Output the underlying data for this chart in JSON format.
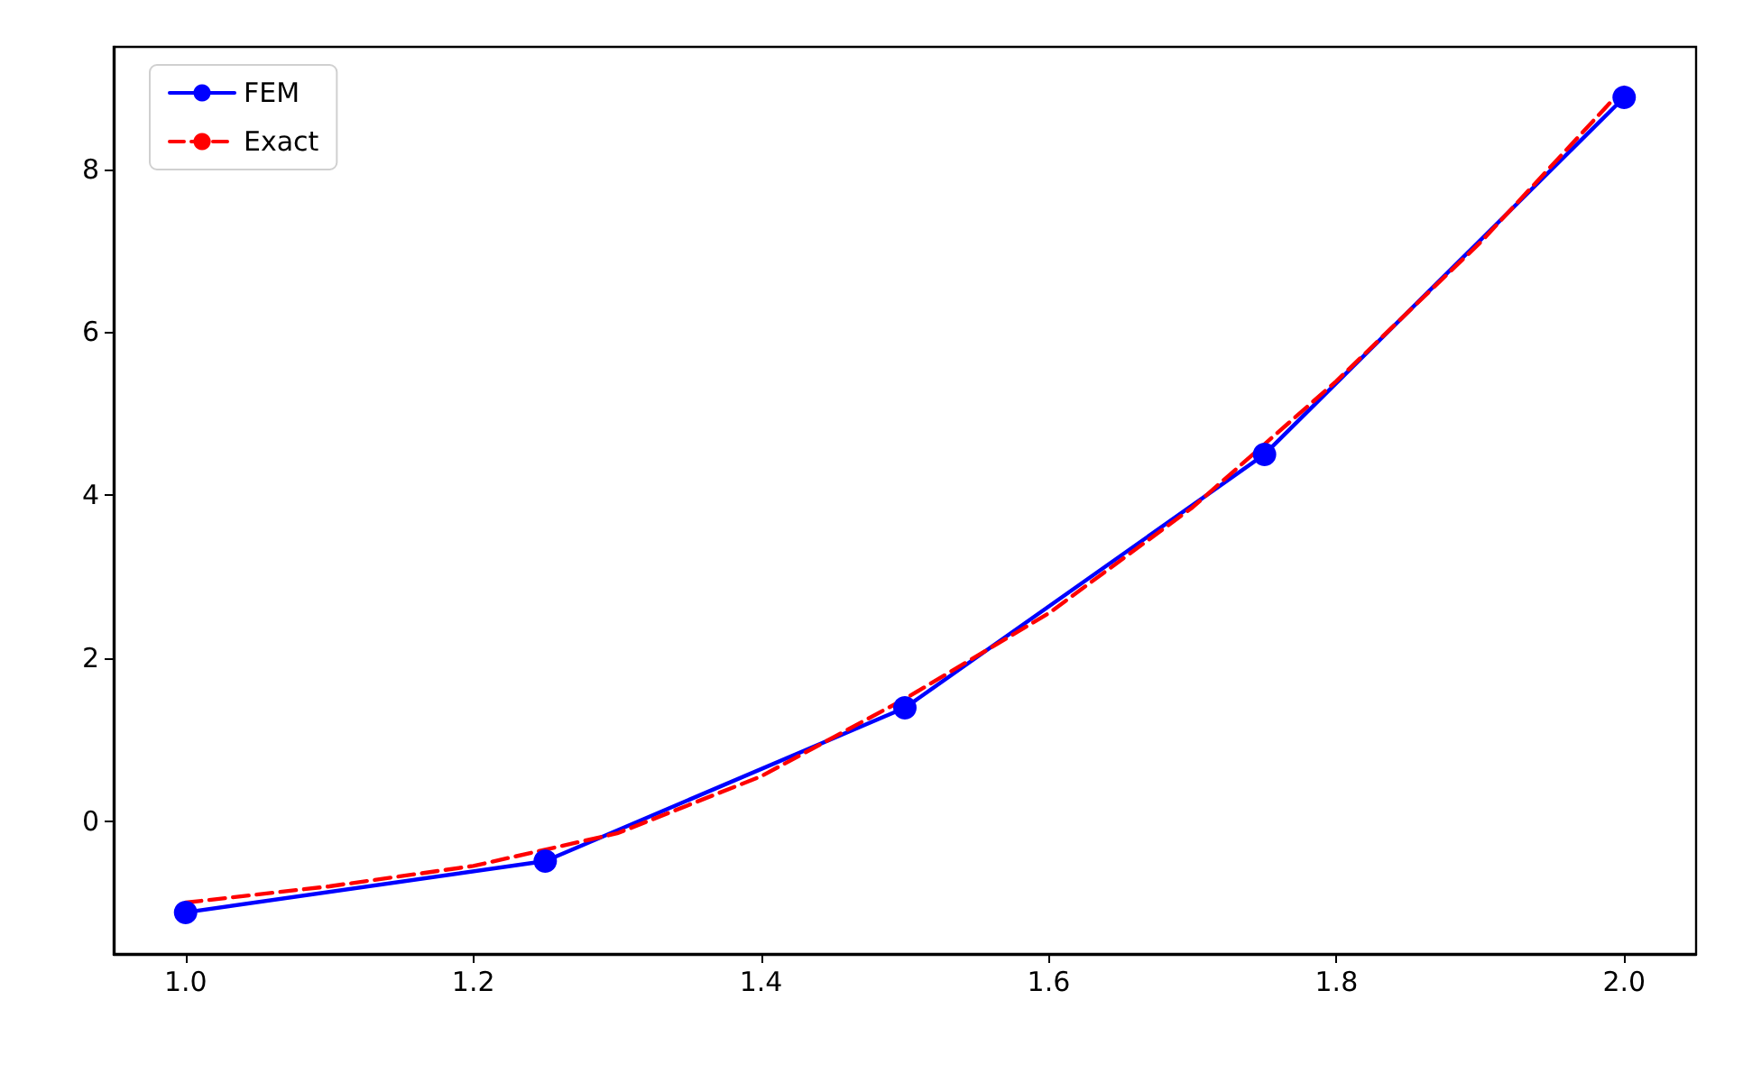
{
  "chart_data": {
    "type": "line",
    "xlim": [
      0.95,
      2.05
    ],
    "ylim": [
      -1.63,
      9.5
    ],
    "xticks": [
      {
        "value": 1.0,
        "label": "1.0"
      },
      {
        "value": 1.2,
        "label": "1.2"
      },
      {
        "value": 1.4,
        "label": "1.4"
      },
      {
        "value": 1.6,
        "label": "1.6"
      },
      {
        "value": 1.8,
        "label": "1.8"
      },
      {
        "value": 2.0,
        "label": "2.0"
      }
    ],
    "yticks": [
      0,
      2,
      4,
      6,
      8
    ],
    "grid": false,
    "legend": "top left",
    "series": [
      {
        "name": "FEM",
        "color": "#0000ff",
        "marker": "circle",
        "line_style": "solid",
        "x": [
          1.0,
          1.25,
          1.5,
          1.75,
          2.0
        ],
        "values": [
          -1.12,
          -0.49,
          1.39,
          4.5,
          8.88
        ]
      },
      {
        "name": "Exact",
        "color": "#ff0000",
        "marker": "none",
        "line_style": "dashed",
        "x": [
          1.0,
          1.1,
          1.2,
          1.3,
          1.4,
          1.5,
          1.6,
          1.7,
          1.8,
          1.9,
          2.0
        ],
        "values": [
          -1.0,
          -0.8,
          -0.55,
          -0.15,
          0.55,
          1.5,
          2.55,
          3.85,
          5.4,
          7.1,
          9.0
        ]
      }
    ]
  }
}
